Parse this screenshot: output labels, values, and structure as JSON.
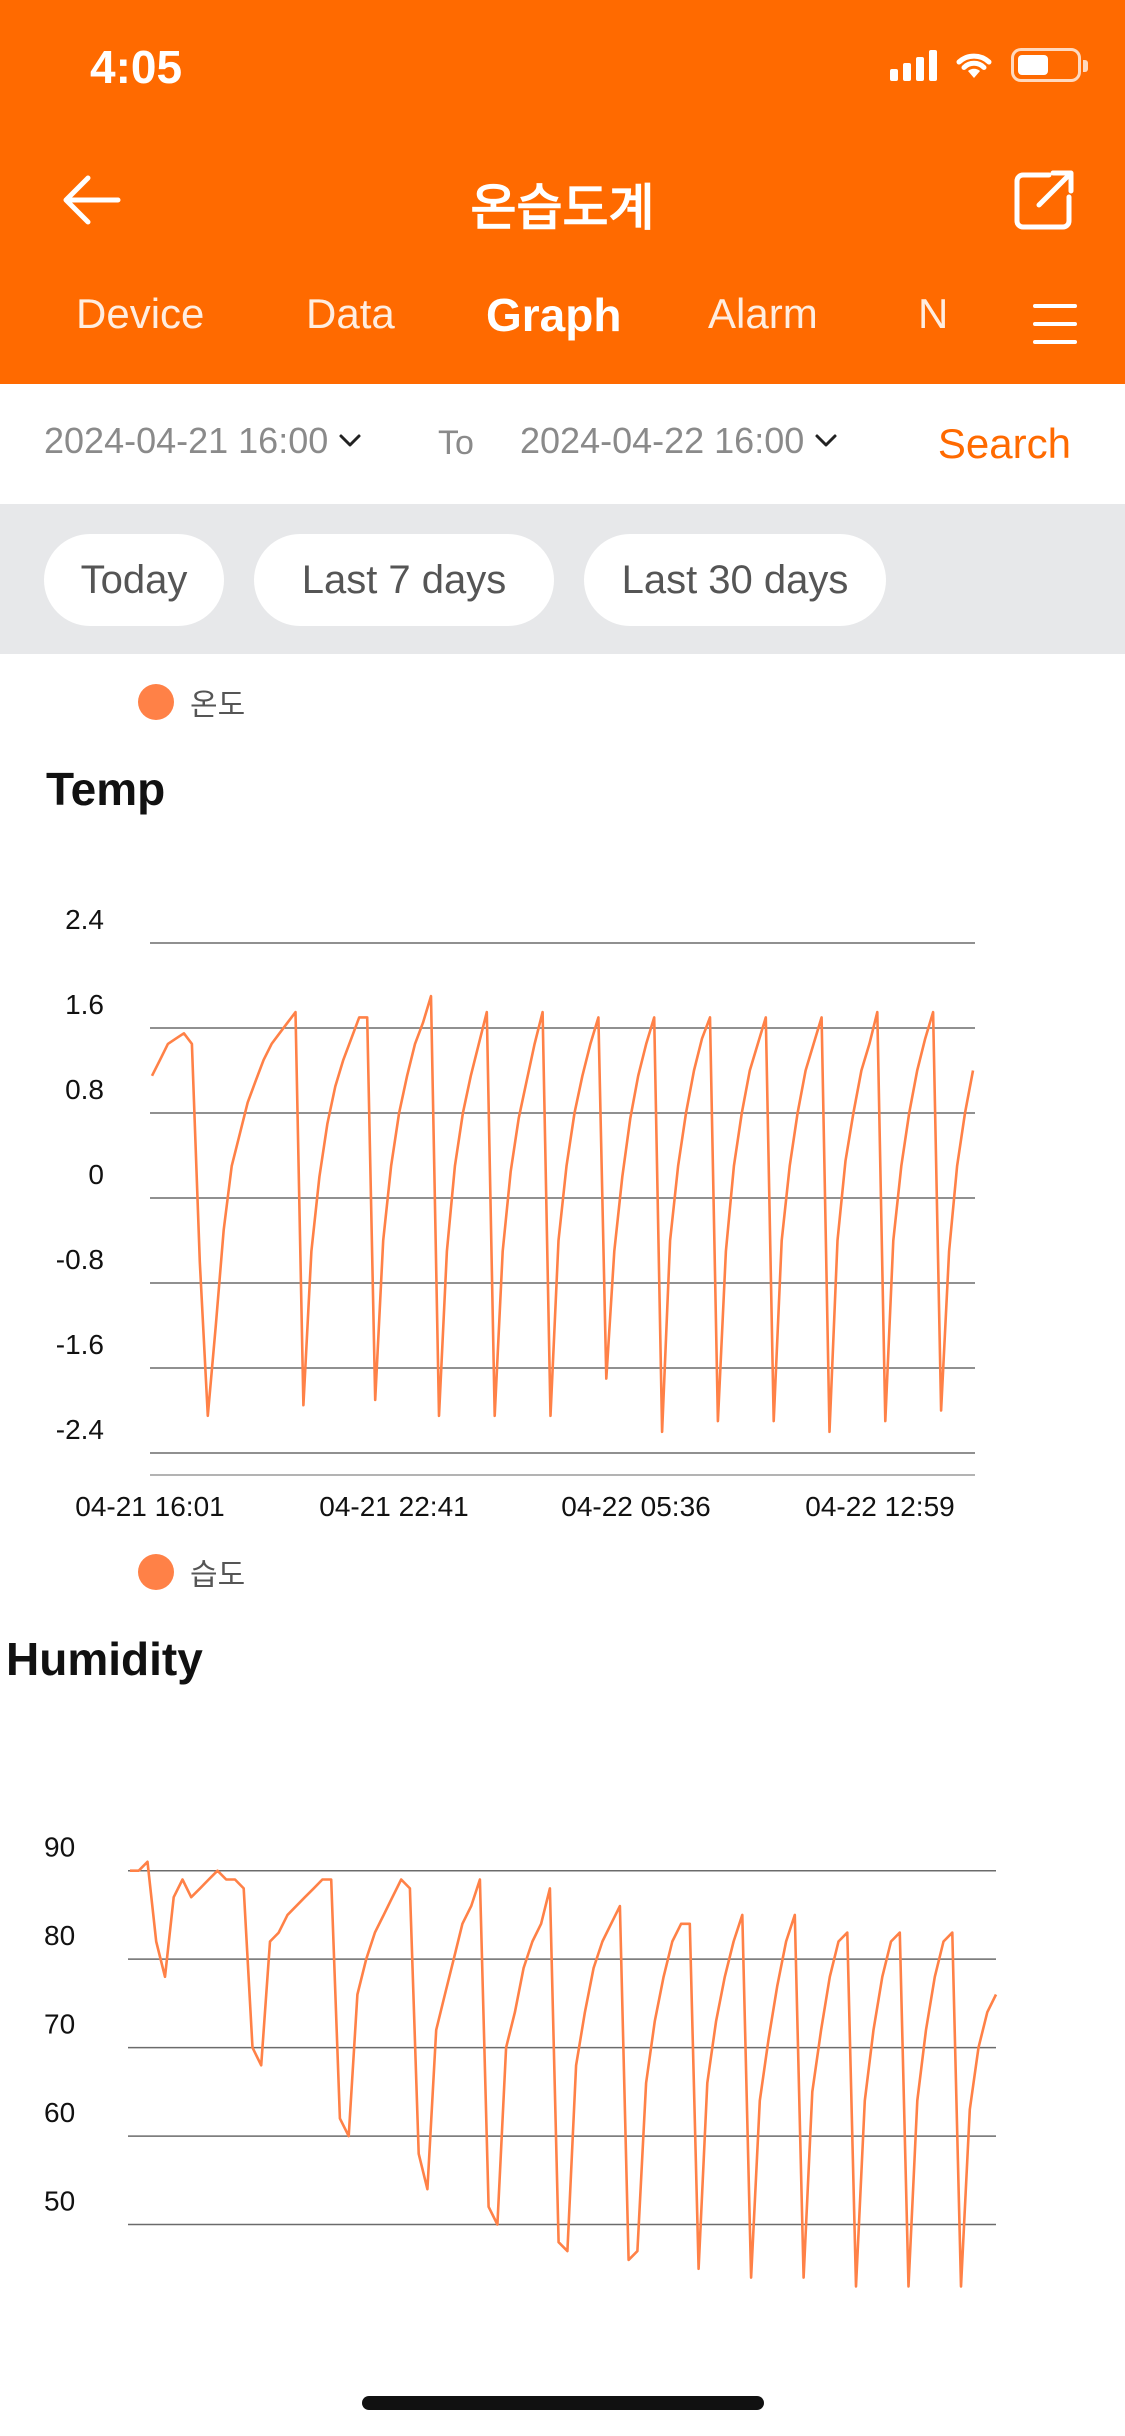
{
  "status": {
    "time": "4:05"
  },
  "header": {
    "title": "온습도계",
    "back_icon": "arrow-left-icon",
    "share_icon": "external-link-icon"
  },
  "tabs": [
    {
      "label": "Device",
      "active": false
    },
    {
      "label": "Data",
      "active": false
    },
    {
      "label": "Graph",
      "active": true
    },
    {
      "label": "Alarm",
      "active": false
    },
    {
      "label": "N",
      "active": false
    }
  ],
  "range": {
    "from": "2024-04-21 16:00",
    "to_label": "To",
    "to": "2024-04-22 16:00",
    "search_label": "Search"
  },
  "quick_ranges": [
    "Today",
    "Last 7 days",
    "Last 30 days"
  ],
  "colors": {
    "accent": "#ff6a00",
    "series": "#ff8147",
    "grid": "#6b6b6b"
  },
  "chart_data": [
    {
      "type": "line",
      "title": "Temp",
      "series": [
        {
          "name": "온도",
          "values": [
            1.15,
            1.3,
            1.45,
            1.5,
            1.55,
            1.45,
            -0.6,
            -2.05,
            -1.2,
            -0.3,
            0.3,
            0.6,
            0.9,
            1.1,
            1.3,
            1.45,
            1.55,
            1.65,
            1.75,
            -1.95,
            -0.5,
            0.2,
            0.7,
            1.05,
            1.3,
            1.5,
            1.7,
            1.7,
            -1.9,
            -0.4,
            0.3,
            0.8,
            1.15,
            1.45,
            1.65,
            1.9,
            -2.05,
            -0.5,
            0.3,
            0.8,
            1.15,
            1.45,
            1.75,
            -2.05,
            -0.5,
            0.25,
            0.75,
            1.1,
            1.45,
            1.75,
            -2.05,
            -0.4,
            0.3,
            0.8,
            1.15,
            1.45,
            1.7,
            -1.7,
            -0.5,
            0.2,
            0.75,
            1.15,
            1.45,
            1.7,
            -2.2,
            -0.4,
            0.3,
            0.8,
            1.2,
            1.5,
            1.7,
            -2.1,
            -0.5,
            0.3,
            0.8,
            1.2,
            1.45,
            1.7,
            -2.1,
            -0.4,
            0.3,
            0.8,
            1.2,
            1.45,
            1.7,
            -2.2,
            -0.4,
            0.35,
            0.8,
            1.2,
            1.45,
            1.75,
            -2.1,
            -0.4,
            0.3,
            0.8,
            1.2,
            1.5,
            1.75,
            -2.0,
            -0.5,
            0.3,
            0.8,
            1.2
          ]
        }
      ],
      "x_ticks": [
        "04-21 16:01",
        "04-21 22:41",
        "04-22 05:36",
        "04-22 12:59"
      ],
      "y_ticks": [
        "2.4",
        "1.6",
        "0.8",
        "0",
        "-0.8",
        "-1.6",
        "-2.4"
      ],
      "ylim": [
        -2.4,
        2.4
      ],
      "grid": true,
      "legend": "top-left"
    },
    {
      "type": "line",
      "title": "Humidity",
      "series": [
        {
          "name": "습도",
          "values": [
            90,
            90,
            91,
            82,
            78,
            87,
            89,
            87,
            88,
            89,
            90,
            89,
            89,
            88,
            70,
            68,
            82,
            83,
            85,
            86,
            87,
            88,
            89,
            89,
            62,
            60,
            76,
            80,
            83,
            85,
            87,
            89,
            88,
            58,
            54,
            72,
            76,
            80,
            84,
            86,
            89,
            52,
            50,
            70,
            74,
            79,
            82,
            84,
            88,
            48,
            47,
            68,
            74,
            79,
            82,
            84,
            86,
            46,
            47,
            66,
            73,
            78,
            82,
            84,
            84,
            45,
            66,
            73,
            78,
            82,
            85,
            44,
            64,
            71,
            77,
            82,
            85,
            44,
            65,
            72,
            78,
            82,
            83,
            43,
            64,
            72,
            78,
            82,
            83,
            43,
            64,
            72,
            78,
            82,
            83,
            43,
            63,
            70,
            74,
            76
          ]
        }
      ],
      "y_ticks": [
        "90",
        "80",
        "70",
        "60",
        "50"
      ],
      "ylim": [
        40,
        92
      ],
      "grid": true,
      "legend": "top-left"
    }
  ]
}
